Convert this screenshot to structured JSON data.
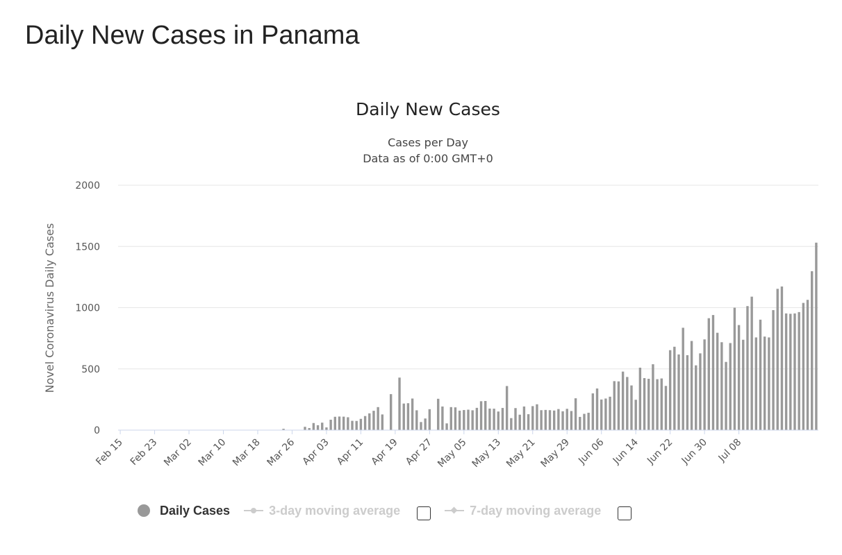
{
  "page": {
    "heading": "Daily New Cases in Panama"
  },
  "colors": {
    "bar": "#999999",
    "grid": "#e6e6e6",
    "axis": "#ccd6eb",
    "legend_inactive": "#cccccc"
  },
  "legend": {
    "items": [
      {
        "label": "Daily Cases",
        "icon": "circle-marker",
        "active": true,
        "checkbox": false
      },
      {
        "label": "3-day moving average",
        "icon": "line-circle-marker",
        "active": false,
        "checkbox": true
      },
      {
        "label": "7-day moving average",
        "icon": "line-diamond-marker",
        "active": false,
        "checkbox": true
      }
    ]
  },
  "chart_data": {
    "type": "bar",
    "title": "Daily New Cases",
    "subtitle": [
      "Cases per Day",
      "Data as of 0:00 GMT+0"
    ],
    "ylabel": "Novel Coronavirus Daily Cases",
    "xlabel": "",
    "ylim": [
      0,
      2000
    ],
    "yticks": [
      0,
      500,
      1000,
      1500,
      2000
    ],
    "grid": true,
    "legend_position": "bottom",
    "start_date": "Feb 15",
    "xtick_labels": [
      "Feb 15",
      "Feb 23",
      "Mar 02",
      "Mar 10",
      "Mar 18",
      "Mar 26",
      "Apr 03",
      "Apr 11",
      "Apr 19",
      "Apr 27",
      "May 05",
      "May 13",
      "May 21",
      "May 29",
      "Jun 06",
      "Jun 14",
      "Jun 22",
      "Jun 30",
      "Jul 08"
    ],
    "series": [
      {
        "name": "Daily Cases",
        "values": [
          0,
          0,
          0,
          0,
          0,
          0,
          0,
          0,
          0,
          0,
          0,
          0,
          0,
          0,
          0,
          0,
          0,
          0,
          0,
          0,
          0,
          0,
          0,
          0,
          0,
          0,
          0,
          0,
          0,
          0,
          0,
          0,
          0,
          0,
          0,
          0,
          0,
          0,
          11,
          0,
          0,
          0,
          0,
          27,
          17,
          58,
          40,
          61,
          22,
          85,
          109,
          111,
          110,
          105,
          76,
          75,
          92,
          115,
          137,
          158,
          188,
          128,
          0,
          294,
          0,
          429,
          217,
          220,
          258,
          162,
          66,
          95,
          171,
          0,
          256,
          193,
          55,
          188,
          186,
          159,
          164,
          167,
          162,
          182,
          236,
          238,
          176,
          175,
          152,
          181,
          360,
          98,
          180,
          126,
          193,
          130,
          196,
          211,
          163,
          165,
          163,
          160,
          172,
          154,
          174,
          156,
          260,
          108,
          133,
          142,
          300,
          340,
          250,
          258,
          273,
          400,
          398,
          478,
          434,
          365,
          248,
          510,
          425,
          419,
          538,
          416,
          422,
          361,
          653,
          681,
          618,
          836,
          612,
          728,
          529,
          627,
          741,
          914,
          940,
          795,
          718,
          557,
          711,
          1000,
          858,
          738,
          1013,
          1090,
          757,
          902,
          764,
          757,
          980,
          1154,
          1173,
          953,
          950,
          953,
          964,
          1039,
          1064,
          1298,
          1531
        ]
      }
    ]
  }
}
